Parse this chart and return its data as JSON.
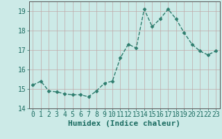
{
  "xlabel": "Humidex (Indice chaleur)",
  "x": [
    0,
    1,
    2,
    3,
    4,
    5,
    6,
    7,
    8,
    9,
    10,
    11,
    12,
    13,
    14,
    15,
    16,
    17,
    18,
    19,
    20,
    21,
    22,
    23
  ],
  "y": [
    15.2,
    15.4,
    14.9,
    14.85,
    14.75,
    14.7,
    14.7,
    14.6,
    14.9,
    15.3,
    15.4,
    16.6,
    17.3,
    17.1,
    19.1,
    18.2,
    18.6,
    19.1,
    18.6,
    17.9,
    17.3,
    16.95,
    16.75,
    16.95
  ],
  "line_color": "#2e7d6e",
  "marker": "D",
  "marker_size": 2.5,
  "bg_color": "#cceae7",
  "grid_color": "#c0a8a8",
  "axis_label_color": "#1a6b60",
  "tick_label_color": "#1a6b60",
  "ylim": [
    14,
    19.5
  ],
  "xlim": [
    -0.5,
    23.5
  ],
  "yticks": [
    14,
    15,
    16,
    17,
    18,
    19
  ],
  "xticks": [
    0,
    1,
    2,
    3,
    4,
    5,
    6,
    7,
    8,
    9,
    10,
    11,
    12,
    13,
    14,
    15,
    16,
    17,
    18,
    19,
    20,
    21,
    22,
    23
  ],
  "line_style": "--",
  "line_width": 1.0,
  "xlabel_fontsize": 8,
  "tick_fontsize": 7
}
